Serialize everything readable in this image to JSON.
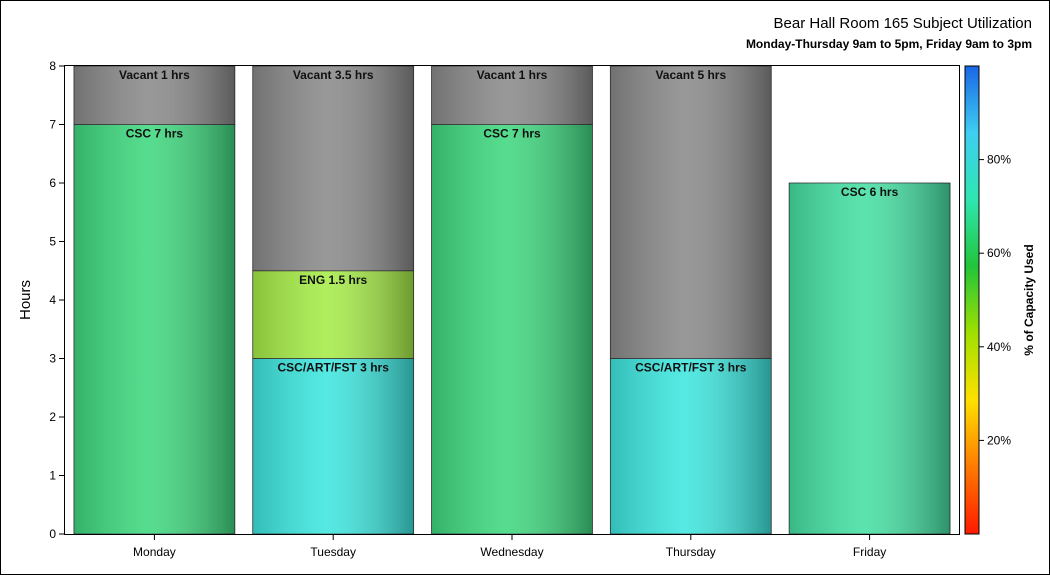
{
  "chart_data": {
    "type": "bar",
    "stacked": true,
    "title": "Bear Hall Room 165 Subject Utilization",
    "subtitle": "Monday-Thursday 9am to 5pm, Friday 9am to 3pm",
    "xlabel": "",
    "ylabel": "Hours",
    "ylim": [
      0,
      8
    ],
    "yticks": [
      "0",
      "1",
      "2",
      "3",
      "4",
      "5",
      "6",
      "7",
      "8"
    ],
    "grid": false,
    "categories": [
      "Monday",
      "Tuesday",
      "Wednesday",
      "Thursday",
      "Friday"
    ],
    "bars": [
      {
        "category": "Monday",
        "segments": [
          {
            "value": 7,
            "label": "CSC 7 hrs",
            "color": "#3fd87f"
          },
          {
            "value": 1,
            "label": "Vacant 1 hrs",
            "color": "#8a8a8a"
          }
        ]
      },
      {
        "category": "Tuesday",
        "segments": [
          {
            "value": 3,
            "label": "CSC/ART/FST 3 hrs",
            "color": "#3ee6df"
          },
          {
            "value": 1.5,
            "label": "ENG 1.5 hrs",
            "color": "#a6ec48"
          },
          {
            "value": 3.5,
            "label": "Vacant 3.5 hrs",
            "color": "#8a8a8a"
          }
        ]
      },
      {
        "category": "Wednesday",
        "segments": [
          {
            "value": 7,
            "label": "CSC 7 hrs",
            "color": "#3fd87f"
          },
          {
            "value": 1,
            "label": "Vacant 1 hrs",
            "color": "#8a8a8a"
          }
        ]
      },
      {
        "category": "Thursday",
        "segments": [
          {
            "value": 3,
            "label": "CSC/ART/FST 3 hrs",
            "color": "#3ee6df"
          },
          {
            "value": 5,
            "label": "Vacant 5 hrs",
            "color": "#8a8a8a"
          }
        ]
      },
      {
        "category": "Friday",
        "segments": [
          {
            "value": 6,
            "label": "CSC 6 hrs",
            "color": "#45e0a2"
          }
        ]
      }
    ],
    "colorbar": {
      "label": "% of Capacity Used",
      "ticks": [
        "20%",
        "40%",
        "60%",
        "80%"
      ],
      "tick_values": [
        20,
        40,
        60,
        80
      ],
      "range": [
        0,
        100
      ],
      "colors": [
        "#ff1a00",
        "#ff7a00",
        "#ffe000",
        "#a0e000",
        "#22c53a",
        "#2ee6b0",
        "#3ecff2",
        "#1a66e6"
      ]
    }
  }
}
